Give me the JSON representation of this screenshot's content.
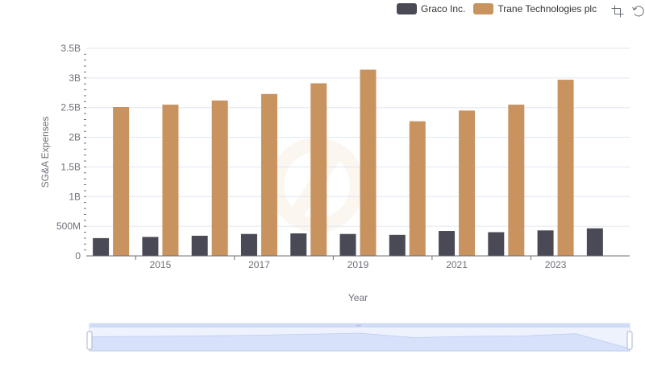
{
  "chart_data": {
    "type": "bar",
    "categories": [
      "2014",
      "2015",
      "2016",
      "2017",
      "2018",
      "2019",
      "2020",
      "2021",
      "2022",
      "2023",
      "2024"
    ],
    "x_tick_labels": [
      "2015",
      "2017",
      "2019",
      "2021",
      "2023"
    ],
    "xlabel": "Year",
    "ylabel": "SG&A Expenses",
    "ylim": [
      0,
      3500000000
    ],
    "y_ticks": [
      {
        "value": 0,
        "label": "0"
      },
      {
        "value": 500000000,
        "label": "500M"
      },
      {
        "value": 1000000000,
        "label": "1B"
      },
      {
        "value": 1500000000,
        "label": "1.5B"
      },
      {
        "value": 2000000000,
        "label": "2B"
      },
      {
        "value": 2500000000,
        "label": "2.5B"
      },
      {
        "value": 3000000000,
        "label": "3B"
      },
      {
        "value": 3500000000,
        "label": "3.5B"
      }
    ],
    "grid": true,
    "legend_position": "top-right",
    "series": [
      {
        "name": "Graco Inc.",
        "color": "#4a4a57",
        "values": [
          300000000,
          320000000,
          340000000,
          370000000,
          380000000,
          370000000,
          355000000,
          420000000,
          400000000,
          430000000,
          465000000
        ]
      },
      {
        "name": "Trane Technologies plc",
        "color": "#c9935f",
        "values": [
          2510000000,
          2550000000,
          2620000000,
          2730000000,
          2910000000,
          3140000000,
          2270000000,
          2450000000,
          2550000000,
          2970000000,
          null
        ]
      }
    ]
  },
  "toolbox": {
    "icons": [
      "zoom-icon",
      "restore-icon"
    ]
  },
  "datazoom": {
    "start_percent": 0,
    "end_percent": 100
  }
}
